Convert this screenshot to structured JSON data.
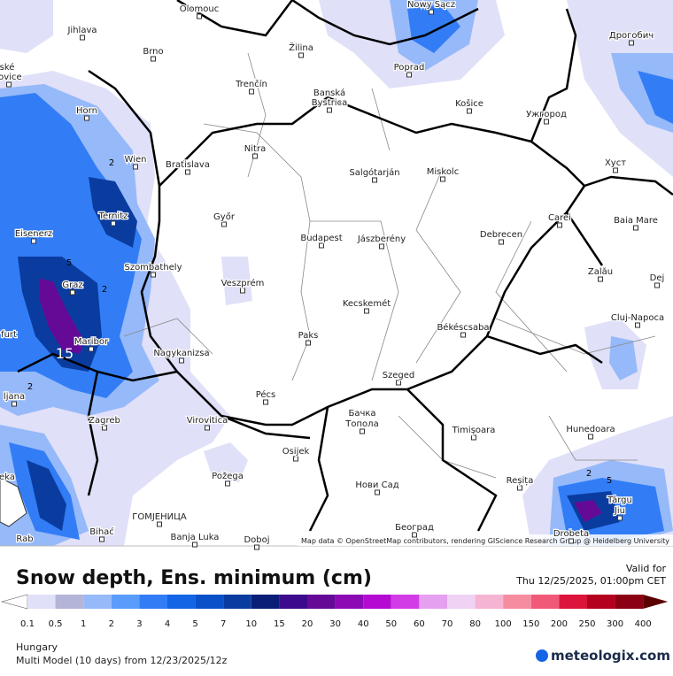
{
  "map": {
    "cities": [
      {
        "name": "Olomouc"
      },
      {
        "name": "Jihlava"
      },
      {
        "name": "Brno"
      },
      {
        "name": "Žilina"
      },
      {
        "name": "Nowy Sącz"
      },
      {
        "name": "Дрогобич"
      },
      {
        "name": "ské"
      },
      {
        "name": "jovice"
      },
      {
        "name": "Poprad"
      },
      {
        "name": "Trenčín"
      },
      {
        "name": "Banská"
      },
      {
        "name": "Bystrica"
      },
      {
        "name": "Horn"
      },
      {
        "name": "Košice"
      },
      {
        "name": "Ужгород"
      },
      {
        "name": "Nitra"
      },
      {
        "name": "Wien"
      },
      {
        "name": "Bratislava"
      },
      {
        "name": "Salgótarján"
      },
      {
        "name": "Miskolc"
      },
      {
        "name": "Хуст"
      },
      {
        "name": "Ternitz"
      },
      {
        "name": "Győr"
      },
      {
        "name": "Carei"
      },
      {
        "name": "Baia Mare"
      },
      {
        "name": "Eisenerz"
      },
      {
        "name": "Budapest"
      },
      {
        "name": "Jászberény"
      },
      {
        "name": "Debrecen"
      },
      {
        "name": "Szombathely"
      },
      {
        "name": "Zalău"
      },
      {
        "name": "Veszprém"
      },
      {
        "name": "Graz"
      },
      {
        "name": "Dej"
      },
      {
        "name": "Kecskemét"
      },
      {
        "name": "Cluj-Napoca"
      },
      {
        "name": "furt"
      },
      {
        "name": "Paks"
      },
      {
        "name": "Békéscsaba"
      },
      {
        "name": "Maribor"
      },
      {
        "name": "Nagykanizsa"
      },
      {
        "name": "Szeged"
      },
      {
        "name": "Pécs"
      },
      {
        "name": "ljana"
      },
      {
        "name": "Zagreb"
      },
      {
        "name": "Virovitica"
      },
      {
        "name": "Бачка"
      },
      {
        "name": "Топола"
      },
      {
        "name": "Timișoara"
      },
      {
        "name": "Hunedoara"
      },
      {
        "name": "Osijek"
      },
      {
        "name": "eka"
      },
      {
        "name": "Požega"
      },
      {
        "name": "Reșița"
      },
      {
        "name": "Нови Сад"
      },
      {
        "name": "Târgu"
      },
      {
        "name": "Jiu"
      },
      {
        "name": "ГОМЈЕНИЦА"
      },
      {
        "name": "Bihać"
      },
      {
        "name": "Banja Luka"
      },
      {
        "name": "Doboj"
      },
      {
        "name": "Београд"
      },
      {
        "name": "Drobeta"
      },
      {
        "name": "Rab"
      }
    ],
    "contour_labels": [
      "2",
      "5",
      "2",
      "15",
      "2",
      "2",
      "5"
    ],
    "attribution": "Map data © OpenStreetMap contributors, rendering GIScience Research Group @ Heidelberg University"
  },
  "legend": {
    "title": "Snow depth, Ens. minimum (cm)",
    "valid_label": "Valid for",
    "valid_time": "Thu 12/25/2025, 01:00pm CET",
    "labels": [
      "0.1",
      "0.5",
      "1",
      "2",
      "3",
      "4",
      "5",
      "7",
      "10",
      "15",
      "20",
      "30",
      "40",
      "50",
      "60",
      "70",
      "80",
      "100",
      "150",
      "200",
      "250",
      "300",
      "400"
    ],
    "colors": [
      "#e0e0f8",
      "#b4b4d8",
      "#96b9fa",
      "#5a9cfa",
      "#327df5",
      "#1464e6",
      "#0a50c8",
      "#0a3ca0",
      "#0a1e78",
      "#3c0a8c",
      "#640a96",
      "#8c0ab4",
      "#b40ad2",
      "#d23ce6",
      "#e6a0f0",
      "#f0d2f5",
      "#f5b4d2",
      "#f58ca0",
      "#f05a78",
      "#dc143c",
      "#b4001e",
      "#8c0014"
    ],
    "under_color": "#ffffff",
    "over_color": "#5a0000"
  },
  "footer": {
    "region": "Hungary",
    "model": "Multi Model (10 days) from 12/23/2025/12z",
    "brand": "meteologix.com"
  }
}
